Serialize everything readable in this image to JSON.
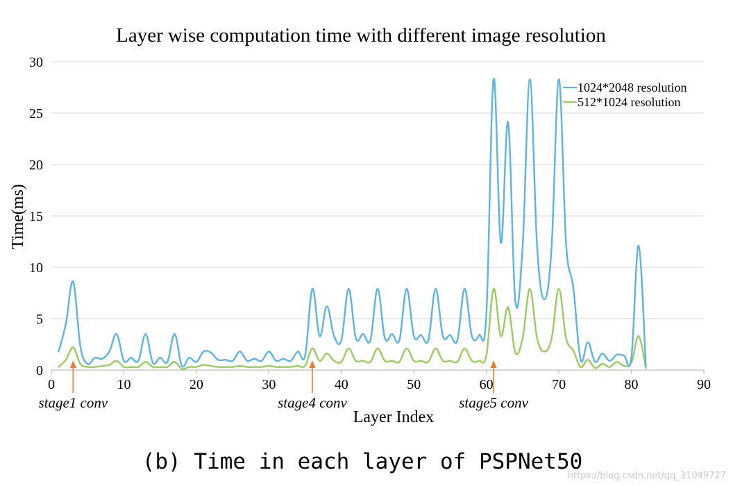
{
  "chart_data": {
    "type": "line",
    "title": "Layer wise computation time with different image resolution",
    "xlabel": "Layer Index",
    "ylabel": "Time(ms)",
    "xlim": [
      0,
      90
    ],
    "ylim": [
      0,
      30
    ],
    "x_ticks": [
      "0",
      "10",
      "20",
      "30",
      "40",
      "50",
      "60",
      "70",
      "80",
      "90"
    ],
    "y_ticks": [
      "0",
      "5",
      "10",
      "15",
      "20",
      "25",
      "30"
    ],
    "grid": true,
    "legend_position": "top-right",
    "x": [
      1,
      2,
      3,
      4,
      5,
      6,
      7,
      8,
      9,
      10,
      11,
      12,
      13,
      14,
      15,
      16,
      17,
      18,
      19,
      20,
      21,
      22,
      23,
      24,
      25,
      26,
      27,
      28,
      29,
      30,
      31,
      32,
      33,
      34,
      35,
      36,
      37,
      38,
      39,
      40,
      41,
      42,
      43,
      44,
      45,
      46,
      47,
      48,
      49,
      50,
      51,
      52,
      53,
      54,
      55,
      56,
      57,
      58,
      59,
      60,
      61,
      62,
      63,
      64,
      65,
      66,
      67,
      68,
      69,
      70,
      71,
      72,
      73,
      74,
      75,
      76,
      77,
      78,
      79,
      80,
      81,
      82
    ],
    "series": [
      {
        "name": "1024*2048 resolution",
        "color": "#5AB4E5",
        "values": [
          1.8,
          4.5,
          8.6,
          2.3,
          0.6,
          1.2,
          1.1,
          1.8,
          3.5,
          0.9,
          1.2,
          0.9,
          3.5,
          0.7,
          1.2,
          0.8,
          3.5,
          0.4,
          1.2,
          0.8,
          1.8,
          1.7,
          1.0,
          1.0,
          0.9,
          1.8,
          0.9,
          1.1,
          0.9,
          1.8,
          0.9,
          1.1,
          0.9,
          1.8,
          1.4,
          7.9,
          3.3,
          6.2,
          3.3,
          2.9,
          7.9,
          3.1,
          3.5,
          2.9,
          7.9,
          3.1,
          3.5,
          2.9,
          7.9,
          3.3,
          3.4,
          2.9,
          7.9,
          3.3,
          3.4,
          2.9,
          7.9,
          3.3,
          3.4,
          5.4,
          28.3,
          12.4,
          24.1,
          6.7,
          12.0,
          28.3,
          12.0,
          6.9,
          12.0,
          28.3,
          12.3,
          8.0,
          1.0,
          2.7,
          0.8,
          1.6,
          0.9,
          1.5,
          1.4,
          1.2,
          12.1,
          0.4
        ]
      },
      {
        "name": "512*1024 resolution",
        "color": "#9ACB5E",
        "values": [
          0.3,
          1.0,
          2.2,
          0.6,
          0.3,
          0.3,
          0.4,
          0.5,
          0.9,
          0.3,
          0.3,
          0.3,
          0.8,
          0.3,
          0.3,
          0.3,
          0.8,
          0.1,
          0.3,
          0.3,
          0.5,
          0.4,
          0.3,
          0.3,
          0.3,
          0.4,
          0.3,
          0.3,
          0.3,
          0.4,
          0.3,
          0.3,
          0.3,
          0.4,
          0.4,
          2.1,
          0.9,
          1.6,
          0.9,
          0.8,
          2.1,
          0.9,
          0.9,
          0.8,
          2.1,
          0.9,
          0.9,
          0.8,
          2.1,
          0.9,
          0.9,
          0.8,
          2.1,
          0.9,
          0.9,
          0.8,
          2.1,
          0.9,
          0.9,
          1.4,
          7.9,
          3.3,
          6.1,
          1.7,
          3.1,
          7.9,
          3.1,
          1.8,
          3.1,
          7.9,
          3.1,
          1.9,
          0.3,
          1.0,
          0.2,
          0.6,
          0.3,
          0.8,
          0.4,
          0.7,
          3.3,
          0.2
        ]
      }
    ],
    "annotations": [
      {
        "text": "stage1 conv",
        "x": 3,
        "color": "#ED7D31"
      },
      {
        "text": "stage4 conv",
        "x": 36,
        "color": "#ED7D31"
      },
      {
        "text": "stage5 conv",
        "x": 61,
        "color": "#ED7D31"
      }
    ],
    "caption": "(b) Time in each layer of PSPNet50"
  },
  "watermark": "https://blog.csdn.net/qq_31049727"
}
